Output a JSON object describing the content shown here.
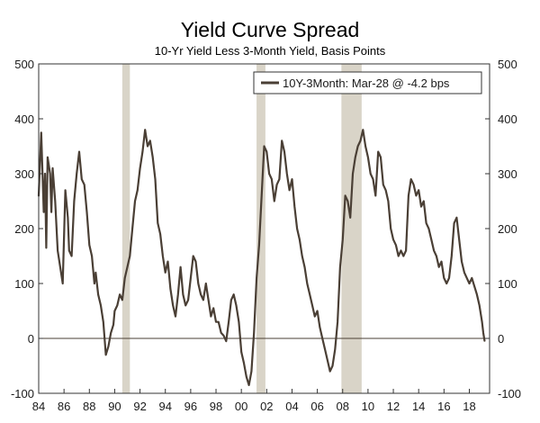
{
  "chart_data": {
    "type": "line",
    "title": "Yield Curve Spread",
    "subtitle": "10-Yr Yield Less 3-Month Yield, Basis Points",
    "xlabel": "",
    "ylabel": "",
    "xlim": [
      1984.0,
      2019.6
    ],
    "ylim": [
      -100,
      500
    ],
    "y_ticks": [
      -100,
      0,
      100,
      200,
      300,
      400,
      500
    ],
    "x_ticks": [
      {
        "year": 1984,
        "label": "84"
      },
      {
        "year": 1986,
        "label": "86"
      },
      {
        "year": 1988,
        "label": "88"
      },
      {
        "year": 1990,
        "label": "90"
      },
      {
        "year": 1992,
        "label": "92"
      },
      {
        "year": 1994,
        "label": "94"
      },
      {
        "year": 1996,
        "label": "96"
      },
      {
        "year": 1998,
        "label": "98"
      },
      {
        "year": 2000,
        "label": "00"
      },
      {
        "year": 2002,
        "label": "02"
      },
      {
        "year": 2004,
        "label": "04"
      },
      {
        "year": 2006,
        "label": "06"
      },
      {
        "year": 2008,
        "label": "08"
      },
      {
        "year": 2010,
        "label": "10"
      },
      {
        "year": 2012,
        "label": "12"
      },
      {
        "year": 2014,
        "label": "14"
      },
      {
        "year": 2016,
        "label": "16"
      },
      {
        "year": 2018,
        "label": "18"
      }
    ],
    "grid": false,
    "zero_line": true,
    "right_axis_mirrors_left": true,
    "legend_position": "top-right",
    "recession_shading": [
      {
        "start": 1990.6,
        "end": 1991.2
      },
      {
        "start": 2001.2,
        "end": 2001.9
      },
      {
        "start": 2007.9,
        "end": 2009.5
      }
    ],
    "series": [
      {
        "name": "10Y-3Month: Mar-28 @ -4.2 bps",
        "color": "#4a3f35",
        "x": [
          1984.0,
          1984.2,
          1984.4,
          1984.5,
          1984.6,
          1984.7,
          1984.9,
          1985.0,
          1985.1,
          1985.3,
          1985.5,
          1985.7,
          1985.9,
          1986.1,
          1986.3,
          1986.4,
          1986.6,
          1986.8,
          1987.0,
          1987.2,
          1987.4,
          1987.6,
          1987.8,
          1988.0,
          1988.2,
          1988.4,
          1988.5,
          1988.7,
          1988.9,
          1989.1,
          1989.3,
          1989.5,
          1989.7,
          1989.9,
          1990.0,
          1990.2,
          1990.4,
          1990.6,
          1990.8,
          1991.0,
          1991.2,
          1991.4,
          1991.6,
          1991.8,
          1992.0,
          1992.2,
          1992.4,
          1992.6,
          1992.8,
          1993.0,
          1993.2,
          1993.4,
          1993.6,
          1993.8,
          1994.0,
          1994.2,
          1994.4,
          1994.6,
          1994.8,
          1995.0,
          1995.2,
          1995.4,
          1995.6,
          1995.8,
          1996.0,
          1996.2,
          1996.4,
          1996.6,
          1996.8,
          1997.0,
          1997.2,
          1997.4,
          1997.6,
          1997.8,
          1998.0,
          1998.2,
          1998.4,
          1998.6,
          1998.8,
          1999.0,
          1999.2,
          1999.4,
          1999.6,
          1999.8,
          2000.0,
          2000.2,
          2000.4,
          2000.6,
          2000.8,
          2001.0,
          2001.2,
          2001.4,
          2001.6,
          2001.8,
          2002.0,
          2002.2,
          2002.4,
          2002.6,
          2002.8,
          2003.0,
          2003.2,
          2003.4,
          2003.6,
          2003.8,
          2004.0,
          2004.2,
          2004.4,
          2004.6,
          2004.8,
          2005.0,
          2005.2,
          2005.4,
          2005.6,
          2005.8,
          2006.0,
          2006.2,
          2006.4,
          2006.6,
          2006.8,
          2007.0,
          2007.2,
          2007.4,
          2007.6,
          2007.8,
          2008.0,
          2008.2,
          2008.4,
          2008.6,
          2008.8,
          2009.0,
          2009.2,
          2009.4,
          2009.6,
          2009.8,
          2010.0,
          2010.2,
          2010.4,
          2010.6,
          2010.8,
          2011.0,
          2011.2,
          2011.4,
          2011.6,
          2011.8,
          2012.0,
          2012.2,
          2012.4,
          2012.6,
          2012.8,
          2013.0,
          2013.2,
          2013.4,
          2013.6,
          2013.8,
          2014.0,
          2014.2,
          2014.4,
          2014.6,
          2014.8,
          2015.0,
          2015.2,
          2015.4,
          2015.6,
          2015.8,
          2016.0,
          2016.2,
          2016.4,
          2016.6,
          2016.8,
          2017.0,
          2017.2,
          2017.4,
          2017.6,
          2017.8,
          2018.0,
          2018.2,
          2018.4,
          2018.6,
          2018.8,
          2019.0,
          2019.1,
          2019.2
        ],
        "values": [
          260,
          375,
          230,
          300,
          165,
          330,
          300,
          230,
          310,
          250,
          160,
          130,
          100,
          270,
          220,
          160,
          150,
          250,
          300,
          340,
          290,
          280,
          230,
          170,
          150,
          100,
          120,
          80,
          60,
          30,
          -30,
          -15,
          10,
          25,
          50,
          60,
          80,
          70,
          110,
          130,
          150,
          200,
          250,
          270,
          310,
          340,
          380,
          350,
          360,
          330,
          290,
          210,
          190,
          150,
          120,
          140,
          90,
          60,
          40,
          80,
          130,
          80,
          60,
          70,
          110,
          150,
          140,
          100,
          80,
          70,
          100,
          70,
          40,
          55,
          30,
          30,
          10,
          5,
          -5,
          30,
          70,
          80,
          60,
          30,
          -25,
          -45,
          -70,
          -85,
          -60,
          10,
          110,
          170,
          260,
          350,
          340,
          300,
          290,
          250,
          280,
          290,
          360,
          340,
          300,
          270,
          290,
          240,
          200,
          180,
          150,
          130,
          100,
          80,
          60,
          40,
          50,
          20,
          0,
          -20,
          -40,
          -60,
          -50,
          -20,
          30,
          130,
          180,
          260,
          250,
          220,
          300,
          330,
          350,
          360,
          380,
          350,
          330,
          300,
          290,
          260,
          340,
          330,
          280,
          270,
          250,
          200,
          180,
          170,
          150,
          160,
          150,
          160,
          260,
          290,
          280,
          260,
          270,
          240,
          250,
          210,
          200,
          180,
          160,
          150,
          130,
          140,
          110,
          100,
          110,
          150,
          210,
          220,
          180,
          140,
          120,
          110,
          100,
          110,
          95,
          80,
          60,
          30,
          10,
          -4.2
        ]
      }
    ]
  }
}
